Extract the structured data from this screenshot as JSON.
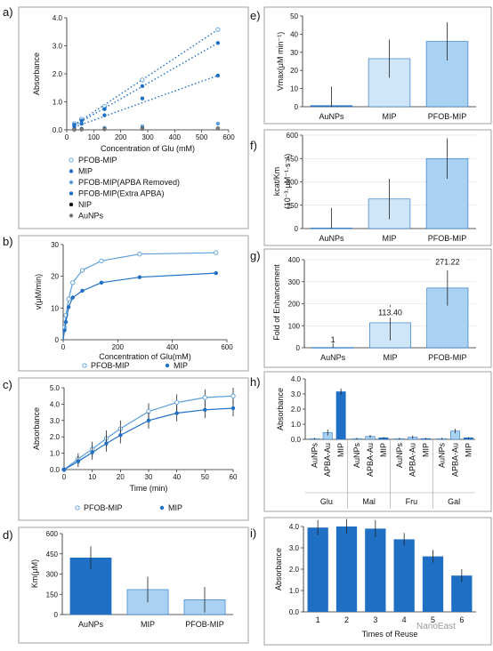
{
  "colors": {
    "dark": "#1f6fc5",
    "mid": "#5a9fdb",
    "light": "#a9d1f1",
    "pale": "#cfe6f8",
    "frame": "#8a8a8a",
    "black": "#111111",
    "gray": "#777777"
  },
  "watermark": "NanoEast",
  "chart_data": [
    {
      "id": "a",
      "panel_label": "a)",
      "type": "scatter",
      "xlabel": "Concentration of Glu (mM)",
      "ylabel": "Absorbance",
      "xlim": [
        0,
        600
      ],
      "ylim": [
        0,
        4.0
      ],
      "xticks": [
        "0",
        "100",
        "200",
        "300",
        "400",
        "500",
        "600"
      ],
      "yticks": [
        "0.0",
        "1.0",
        "2.0",
        "3.0",
        "4.0"
      ],
      "x": [
        28,
        55,
        140,
        280,
        560
      ],
      "series": [
        {
          "name": "PFOB-MIP",
          "marker": "open",
          "values": [
            0.22,
            0.38,
            0.84,
            1.78,
            3.58
          ],
          "fit": true
        },
        {
          "name": "MIP",
          "marker": "filled",
          "values": [
            0.18,
            0.33,
            0.74,
            1.56,
            3.1
          ],
          "fit": true
        },
        {
          "name": "PFOB-MIP(APBA Removed)",
          "marker": "filled-light",
          "values": [
            0.03,
            0.04,
            0.07,
            0.12,
            0.22
          ],
          "fit": false
        },
        {
          "name": "PFOB-MIP(Extra APBA)",
          "marker": "filled",
          "values": [
            0.12,
            0.22,
            0.52,
            1.12,
            1.94
          ],
          "fit": true
        },
        {
          "name": "NIP",
          "marker": "black",
          "values": [
            0.01,
            0.02,
            0.03,
            0.04,
            0.05
          ],
          "fit": false
        },
        {
          "name": "AuNPs",
          "marker": "gray",
          "values": [
            0.0,
            0.01,
            0.02,
            0.03,
            0.04
          ],
          "fit": false
        }
      ]
    },
    {
      "id": "b",
      "panel_label": "b)",
      "type": "line",
      "xlabel": "Concentration of Glu(mM)",
      "ylabel": "v(μM/min)",
      "xlim": [
        0,
        600
      ],
      "ylim": [
        0,
        35
      ],
      "xticks": [
        "0",
        "200",
        "400",
        "600"
      ],
      "yticks": [
        "0",
        "10",
        "20",
        "30"
      ],
      "series": [
        {
          "name": "PFOB-MIP",
          "marker": "open",
          "x": [
            5,
            10,
            20,
            35,
            70,
            140,
            280,
            560
          ],
          "values": [
            4.5,
            9.0,
            15.0,
            21.0,
            25.5,
            29.0,
            31.5,
            32.0
          ]
        },
        {
          "name": "MIP",
          "marker": "filled",
          "x": [
            5,
            10,
            20,
            35,
            70,
            140,
            280,
            560
          ],
          "values": [
            3.5,
            6.5,
            12.0,
            15.5,
            18.0,
            21.0,
            23.0,
            24.5
          ]
        }
      ]
    },
    {
      "id": "c",
      "panel_label": "c)",
      "type": "line",
      "xlabel": "Time (min)",
      "ylabel": "Absorbance",
      "xlim": [
        0,
        60
      ],
      "ylim": [
        0,
        5.0
      ],
      "xticks": [
        "0",
        "10",
        "20",
        "30",
        "40",
        "50",
        "60"
      ],
      "yticks": [
        "0.0",
        "1.0",
        "2.0",
        "3.0",
        "4.0",
        "5.0"
      ],
      "x": [
        0,
        5,
        10,
        15,
        20,
        30,
        40,
        50,
        60
      ],
      "series": [
        {
          "name": "PFOB-MIP",
          "marker": "open",
          "values": [
            0.0,
            0.65,
            1.25,
            1.9,
            2.5,
            3.55,
            4.1,
            4.4,
            4.5
          ],
          "err": [
            0,
            0.35,
            0.45,
            0.5,
            0.5,
            0.5,
            0.5,
            0.5,
            0.5
          ]
        },
        {
          "name": "MIP",
          "marker": "filled",
          "values": [
            0.0,
            0.5,
            1.05,
            1.6,
            2.1,
            3.0,
            3.45,
            3.65,
            3.75
          ],
          "err": [
            0,
            0.35,
            0.45,
            0.5,
            0.5,
            0.5,
            0.5,
            0.5,
            0.5
          ]
        }
      ]
    },
    {
      "id": "d",
      "panel_label": "d)",
      "type": "bar",
      "ylabel": "Km(μM)",
      "ylim": [
        0,
        600
      ],
      "yticks": [
        "0",
        "150",
        "300",
        "450",
        "600"
      ],
      "categories": [
        "AuNPs",
        "MIP",
        "PFOB-MIP"
      ],
      "values": [
        420,
        185,
        110
      ],
      "err": [
        85,
        95,
        95
      ]
    },
    {
      "id": "e",
      "panel_label": "e)",
      "type": "bar",
      "ylabel": "Vmax(μM min⁻¹)",
      "ylim": [
        0,
        50
      ],
      "yticks": [
        "0",
        "10",
        "20",
        "30",
        "40",
        "50"
      ],
      "categories": [
        "AuNPs",
        "MIP",
        "PFOB-MIP"
      ],
      "values": [
        0.6,
        26.5,
        36.0
      ],
      "err": [
        10.5,
        10.5,
        10.5
      ]
    },
    {
      "id": "f",
      "panel_label": "f)",
      "type": "bar",
      "ylabel": "kcat/Km",
      "ylabel2": "(10⁻³·μM⁻¹·s⁻¹)",
      "ylim": [
        0,
        600
      ],
      "yticks": [
        "0",
        "150",
        "300",
        "450",
        "600"
      ],
      "categories": [
        "AuNPs",
        "MIP",
        "PFOB-MIP"
      ],
      "values": [
        3,
        190,
        450
      ],
      "err": [
        130,
        130,
        130
      ]
    },
    {
      "id": "g",
      "panel_label": "g)",
      "type": "bar",
      "ylabel": "Fold of Enhancement",
      "ylim": [
        0,
        400
      ],
      "yticks": [
        "0",
        "100",
        "200",
        "300",
        "400"
      ],
      "categories": [
        "AuNPs",
        "MIP",
        "PFOB-MIP"
      ],
      "values": [
        1,
        113.4,
        271.22
      ],
      "err": [
        20,
        80,
        80
      ],
      "data_labels": [
        "1",
        "113.40",
        "271.22"
      ]
    },
    {
      "id": "h",
      "panel_label": "h)",
      "type": "bar",
      "ylabel": "Absorbance",
      "ylim": [
        0,
        4.0
      ],
      "yticks": [
        "0.0",
        "1.0",
        "2.0",
        "3.0",
        "4.0"
      ],
      "groups": [
        "Glu",
        "Mal",
        "Fru",
        "Gal"
      ],
      "categories": [
        "AuNPs",
        "APBA-Au",
        "MIP"
      ],
      "values": [
        [
          0.05,
          0.45,
          3.15
        ],
        [
          0.05,
          0.2,
          0.1
        ],
        [
          0.05,
          0.15,
          0.05
        ],
        [
          0.05,
          0.55,
          0.1
        ]
      ],
      "err": [
        [
          0.05,
          0.2,
          0.2
        ],
        [
          0.05,
          0.1,
          0.05
        ],
        [
          0.05,
          0.1,
          0.05
        ],
        [
          0.05,
          0.15,
          0.05
        ]
      ]
    },
    {
      "id": "i",
      "panel_label": "i)",
      "type": "bar",
      "xlabel": "Times of Reuse",
      "ylabel": "Absorbance",
      "ylim": [
        0,
        4.0
      ],
      "yticks": [
        "0.0",
        "1.0",
        "2.0",
        "3.0",
        "4.0"
      ],
      "categories": [
        "1",
        "2",
        "3",
        "4",
        "5",
        "6"
      ],
      "values": [
        3.95,
        4.0,
        3.9,
        3.4,
        2.6,
        1.7
      ],
      "err": [
        0.35,
        0.35,
        0.4,
        0.3,
        0.3,
        0.3
      ]
    }
  ]
}
